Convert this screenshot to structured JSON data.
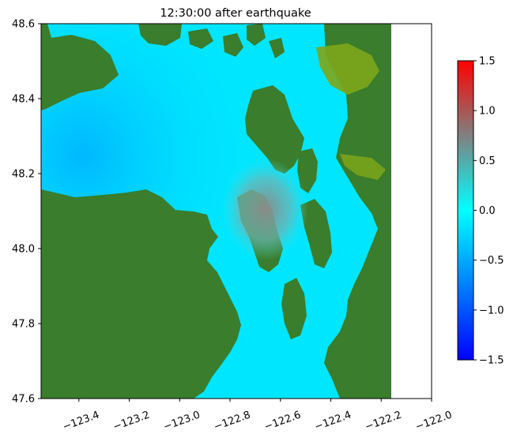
{
  "chart_data": {
    "type": "heatmap",
    "title": "12:30:00 after earthquake",
    "xlabel": "",
    "ylabel": "",
    "xlim": [
      -123.55,
      -122.0
    ],
    "ylim": [
      47.6,
      48.6
    ],
    "x_ticks": [
      -123.4,
      -123.2,
      -123.0,
      -122.8,
      -122.6,
      -122.4,
      -122.2,
      -122.0
    ],
    "x_tick_labels": [
      "−123.4",
      "−123.2",
      "−123.0",
      "−122.8",
      "−122.6",
      "−122.4",
      "−122.2",
      "−122.0"
    ],
    "y_ticks": [
      47.6,
      47.8,
      48.0,
      48.2,
      48.4,
      48.6
    ],
    "y_tick_labels": [
      "47.6",
      "47.8",
      "48.0",
      "48.2",
      "48.4",
      "48.6"
    ],
    "data_extent_x": [
      -123.55,
      -122.16
    ],
    "colorbar": {
      "range": [
        -1.5,
        1.5
      ],
      "ticks": [
        -1.5,
        -1.0,
        -0.5,
        0.0,
        0.5,
        1.0,
        1.5
      ],
      "tick_labels": [
        "−1.5",
        "−1.0",
        "−0.5",
        "0.0",
        "0.5",
        "1.0",
        "1.5"
      ],
      "stops": [
        {
          "value": -1.5,
          "color": "#0000ff"
        },
        {
          "value": 0.0,
          "color": "#00ffff"
        },
        {
          "value": 0.75,
          "color": "#808080"
        },
        {
          "value": 1.5,
          "color": "#ff0000"
        }
      ]
    },
    "colors": {
      "land": "#3a7d2c",
      "shore": "#7ea61a",
      "deep_water": "#00b4ff",
      "shallow_water": "#00ffff",
      "elevated_water": "#6fb0b0"
    }
  }
}
